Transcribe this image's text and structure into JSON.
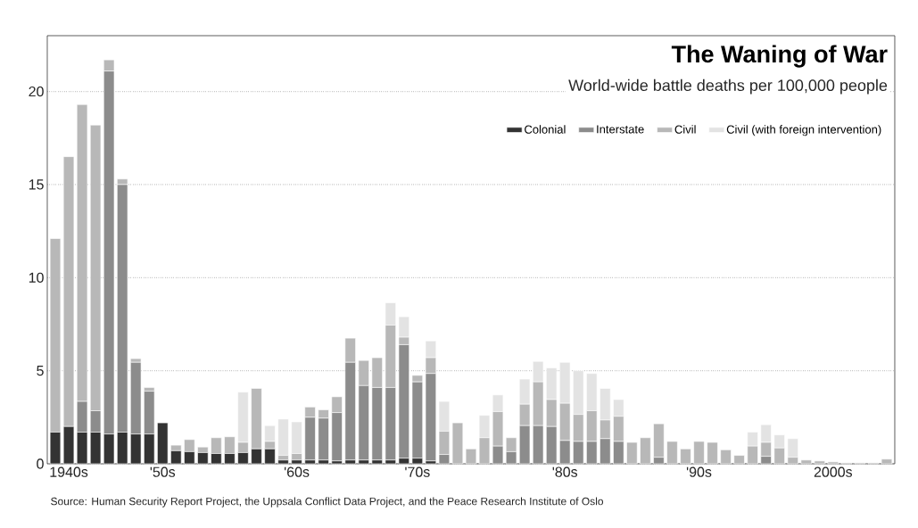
{
  "chart_data": {
    "type": "bar",
    "stacked": true,
    "title": "The Waning of War",
    "subtitle": "World-wide battle deaths per 100,000 people",
    "categories": [
      null,
      "1940s",
      null,
      null,
      null,
      null,
      null,
      null,
      "'50s",
      null,
      null,
      null,
      null,
      null,
      null,
      null,
      null,
      null,
      "'60s",
      null,
      null,
      null,
      null,
      null,
      null,
      null,
      null,
      "'70s",
      null,
      null,
      null,
      null,
      null,
      null,
      null,
      null,
      null,
      null,
      "'80s",
      null,
      null,
      null,
      null,
      null,
      null,
      null,
      null,
      null,
      "'90s",
      null,
      null,
      null,
      null,
      null,
      null,
      null,
      null,
      null,
      "2000s",
      null,
      null,
      null,
      null
    ],
    "series": [
      {
        "name": "Colonial",
        "color": "#333333",
        "values": [
          1.7,
          2.0,
          1.7,
          1.7,
          1.6,
          1.7,
          1.6,
          1.6,
          2.2,
          0.7,
          0.65,
          0.6,
          0.55,
          0.55,
          0.6,
          0.8,
          0.8,
          0.2,
          0.2,
          0.2,
          0.2,
          0.15,
          0.2,
          0.2,
          0.2,
          0.2,
          0.3,
          0.3,
          0.15,
          null,
          null,
          null,
          null,
          null,
          null,
          null,
          null,
          null,
          null,
          null,
          null,
          null,
          null,
          null,
          null,
          null,
          null,
          null,
          null,
          null,
          null,
          null,
          null,
          null,
          null,
          null,
          null,
          null,
          null,
          null,
          null,
          null,
          null
        ]
      },
      {
        "name": "Interstate",
        "color": "#8c8c8c",
        "values": [
          null,
          null,
          1.65,
          1.15,
          19.5,
          13.3,
          3.85,
          2.3,
          null,
          null,
          null,
          null,
          null,
          null,
          null,
          null,
          null,
          null,
          null,
          2.3,
          2.25,
          2.6,
          5.25,
          4.0,
          3.9,
          3.9,
          6.1,
          4.1,
          4.7,
          0.5,
          null,
          null,
          null,
          0.95,
          0.65,
          2.05,
          2.05,
          2.0,
          1.25,
          1.2,
          1.2,
          1.35,
          1.2,
          null,
          null,
          0.35,
          null,
          null,
          null,
          null,
          null,
          null,
          null,
          0.4,
          null,
          null,
          null,
          null,
          null,
          null,
          null,
          null,
          null
        ]
      },
      {
        "name": "Civil",
        "color": "#b8b8b8",
        "values": [
          10.4,
          14.5,
          15.95,
          15.35,
          0.6,
          0.3,
          0.2,
          0.2,
          null,
          0.3,
          0.65,
          0.3,
          0.85,
          0.9,
          0.55,
          3.25,
          0.4,
          0.25,
          0.35,
          0.55,
          0.45,
          0.85,
          1.3,
          1.35,
          1.6,
          3.35,
          0.4,
          0.35,
          0.85,
          1.25,
          2.2,
          0.8,
          1.4,
          1.85,
          0.75,
          1.15,
          2.35,
          1.45,
          2.0,
          1.45,
          1.65,
          1.0,
          1.35,
          1.15,
          1.4,
          1.8,
          1.2,
          0.8,
          1.2,
          1.15,
          0.75,
          0.45,
          0.95,
          0.75,
          0.85,
          0.35,
          0.2,
          0.15,
          0.1,
          0.05,
          0.05,
          0.05,
          0.25
        ]
      },
      {
        "name": "Civil (with foreign intervention)",
        "color": "#e3e3e3",
        "values": [
          null,
          null,
          null,
          null,
          null,
          null,
          null,
          null,
          null,
          null,
          null,
          null,
          null,
          null,
          2.7,
          null,
          0.85,
          1.95,
          1.7,
          null,
          null,
          null,
          null,
          null,
          null,
          1.2,
          1.1,
          null,
          0.9,
          1.6,
          null,
          null,
          1.2,
          0.9,
          null,
          1.35,
          1.1,
          1.7,
          2.2,
          2.35,
          2.0,
          1.7,
          0.9,
          null,
          null,
          null,
          null,
          null,
          null,
          null,
          null,
          null,
          0.75,
          0.95,
          0.7,
          1.0,
          null,
          null,
          null,
          null,
          null,
          null,
          null
        ]
      }
    ],
    "ylim": [
      0,
      23
    ],
    "yticks": [
      0,
      5,
      10,
      15,
      20
    ],
    "grid": "y",
    "legend": "top right",
    "annotations": [
      "Source: Human Security Report Project, the Uppsala Conflict Data Project, and the Peace Research Institute of Oslo"
    ]
  }
}
